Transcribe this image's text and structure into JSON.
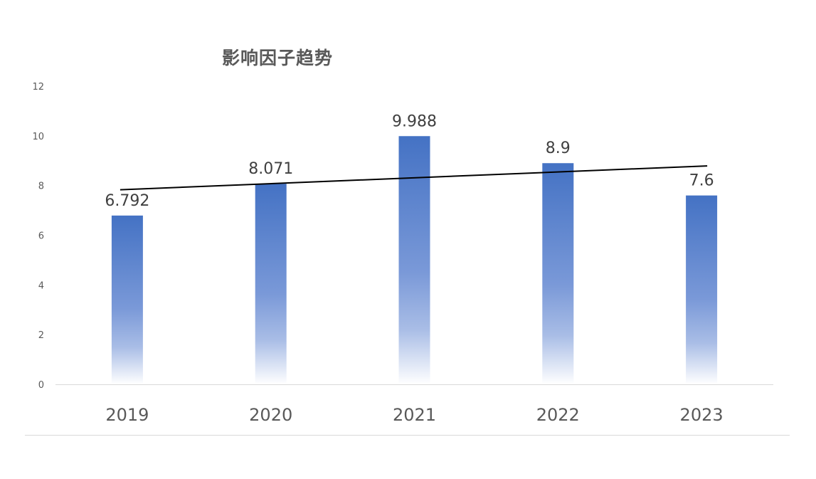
{
  "chart_data": {
    "type": "bar",
    "title": "影响因子趋势",
    "categories": [
      "2019",
      "2020",
      "2021",
      "2022",
      "2023"
    ],
    "values": [
      6.792,
      8.071,
      9.988,
      8.9,
      7.6
    ],
    "data_labels": [
      "6.792",
      "8.071",
      "9.988",
      "8.9",
      "7.6"
    ],
    "ylim": [
      0,
      12
    ],
    "y_ticks": [
      "0",
      "2",
      "4",
      "6",
      "8",
      "10",
      "12"
    ],
    "grid": false,
    "legend": "none",
    "trendline": {
      "type": "linear",
      "start": 7.83,
      "end": 8.79,
      "color": "#000000"
    },
    "colors": {
      "bar_top": "#4472c4",
      "bar_bottom": "#ffffff",
      "axis": "#d9d9d9",
      "text": "#595959"
    }
  }
}
